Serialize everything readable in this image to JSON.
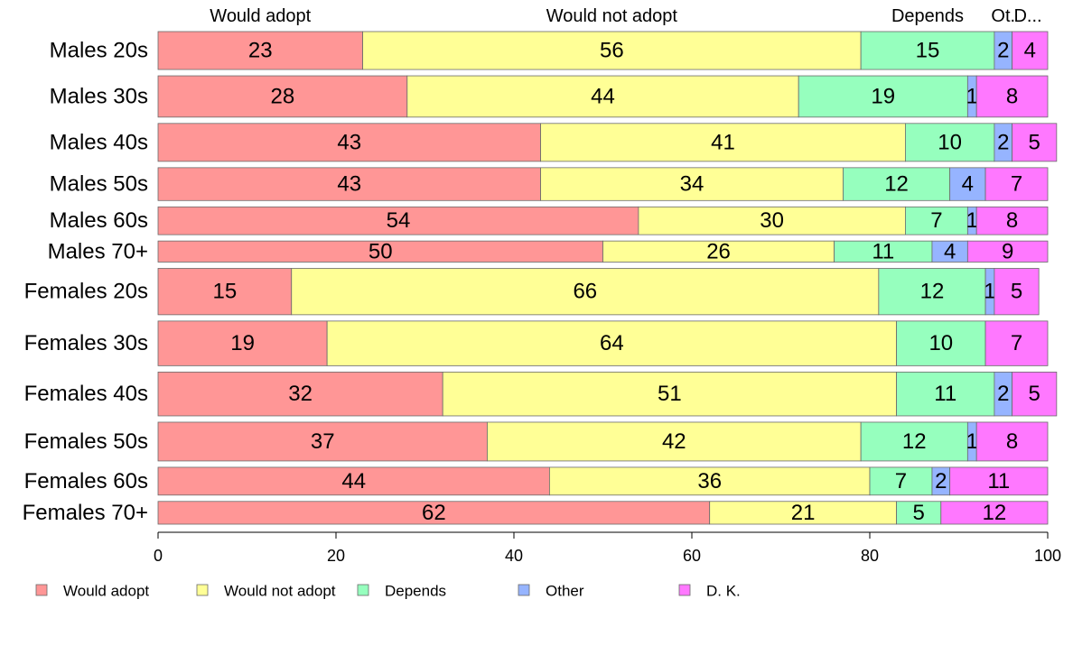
{
  "chart_data": {
    "type": "bar",
    "orientation": "horizontal",
    "stacked": true,
    "categories": [
      "Males 20s",
      "Males 30s",
      "Males 40s",
      "Males 50s",
      "Males 60s",
      "Males 70+",
      "Females 20s",
      "Females 30s",
      "Females 40s",
      "Females 50s",
      "Females 60s",
      "Females 70+"
    ],
    "series": [
      {
        "name": "Would adopt",
        "color": "#ff9696",
        "values": [
          23,
          28,
          43,
          43,
          54,
          50,
          15,
          19,
          32,
          37,
          44,
          62
        ]
      },
      {
        "name": "Would not adopt",
        "color": "#ffff96",
        "values": [
          56,
          44,
          41,
          34,
          30,
          26,
          66,
          64,
          51,
          42,
          36,
          21
        ]
      },
      {
        "name": "Depends",
        "color": "#96ffbe",
        "values": [
          15,
          19,
          10,
          12,
          7,
          11,
          12,
          10,
          11,
          12,
          7,
          5
        ]
      },
      {
        "name": "Other",
        "color": "#96b4ff",
        "values": [
          2,
          1,
          2,
          4,
          1,
          4,
          1,
          0,
          2,
          1,
          2,
          0
        ]
      },
      {
        "name": "D. K.",
        "color": "#ff78ff",
        "values": [
          4,
          8,
          5,
          7,
          8,
          9,
          5,
          7,
          5,
          8,
          11,
          12
        ]
      }
    ],
    "weights": [
      45,
      49,
      45,
      39,
      33,
      25,
      55,
      53,
      52,
      46,
      33,
      27
    ],
    "top_labels": [
      "Would adopt",
      "Would not adopt",
      "Depends",
      "Ot.",
      "D..."
    ],
    "xlim": [
      0,
      100
    ],
    "xticks": [
      0,
      20,
      40,
      60,
      80,
      100
    ],
    "title": "",
    "xlabel": "",
    "ylabel": "",
    "grid": false,
    "legend": "bottom"
  }
}
